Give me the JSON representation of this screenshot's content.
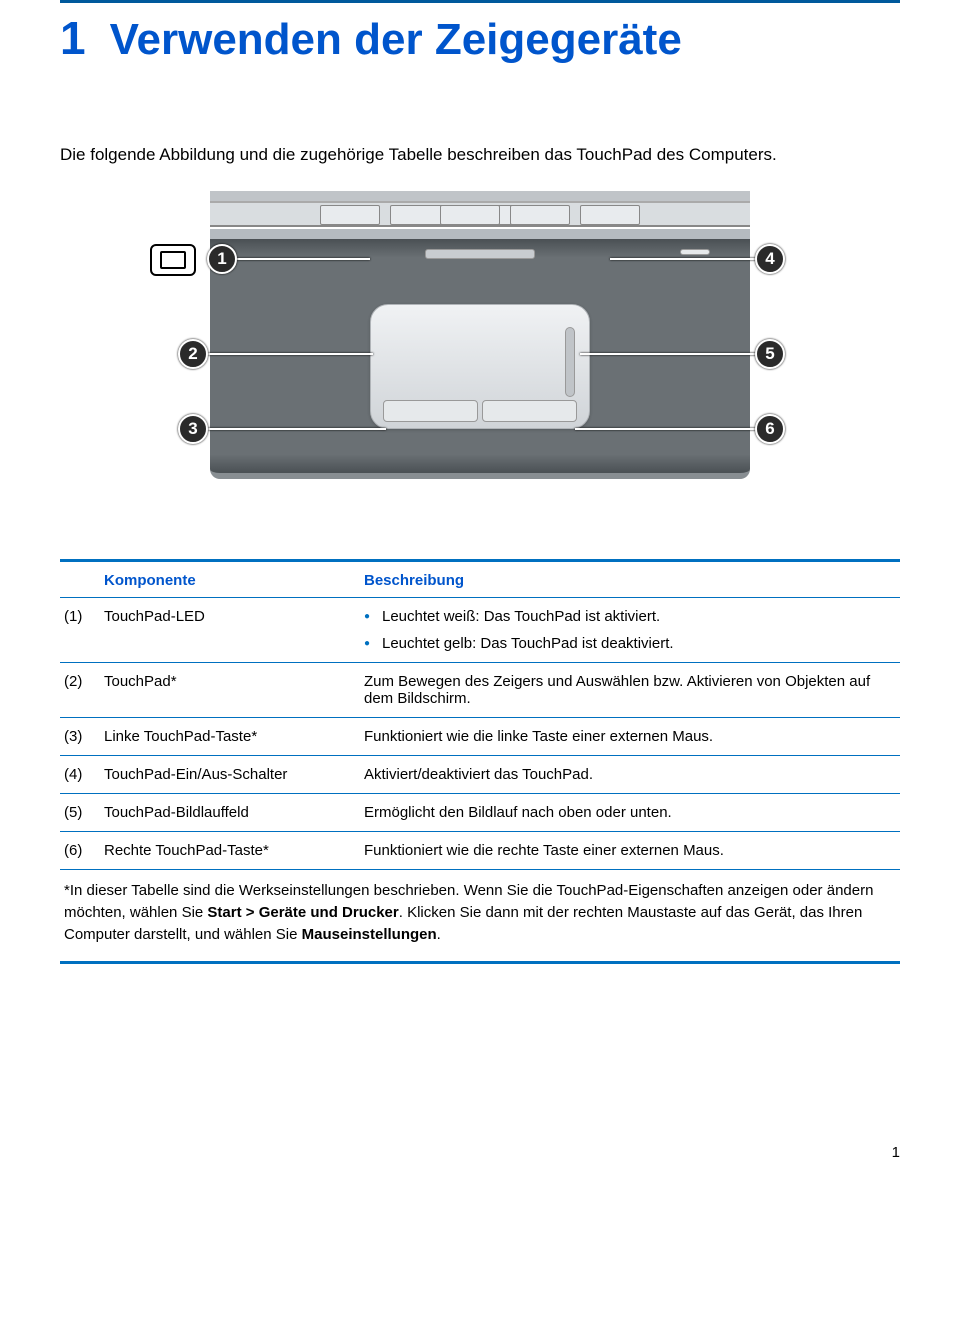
{
  "chapter": {
    "number": "1",
    "title": "Verwenden der Zeigegeräte"
  },
  "intro": "Die folgende Abbildung und die zugehörige Tabelle beschreiben das TouchPad des Computers.",
  "diagram": {
    "callouts": [
      "1",
      "2",
      "3",
      "4",
      "5",
      "6"
    ]
  },
  "table": {
    "headers": {
      "komponente": "Komponente",
      "beschreibung": "Beschreibung"
    },
    "rows": [
      {
        "n": "(1)",
        "k": "TouchPad-LED",
        "bullets": [
          "Leuchtet weiß: Das TouchPad ist aktiviert.",
          "Leuchtet gelb: Das TouchPad ist deaktiviert."
        ]
      },
      {
        "n": "(2)",
        "k": "TouchPad*",
        "b": "Zum Bewegen des Zeigers und Auswählen bzw. Aktivieren von Objekten auf dem Bildschirm."
      },
      {
        "n": "(3)",
        "k": "Linke TouchPad-Taste*",
        "b": "Funktioniert wie die linke Taste einer externen Maus."
      },
      {
        "n": "(4)",
        "k": "TouchPad-Ein/Aus-Schalter",
        "b": "Aktiviert/deaktiviert das TouchPad."
      },
      {
        "n": "(5)",
        "k": "TouchPad-Bildlauffeld",
        "b": "Ermöglicht den Bildlauf nach oben oder unten."
      },
      {
        "n": "(6)",
        "k": "Rechte TouchPad-Taste*",
        "b": "Funktioniert wie die rechte Taste einer externen Maus."
      }
    ],
    "footnote_pre": "*In dieser Tabelle sind die Werkseinstellungen beschrieben. Wenn Sie die TouchPad-Eigenschaften anzeigen oder ändern möchten, wählen Sie ",
    "footnote_bold1": "Start > Geräte und Drucker",
    "footnote_mid": ". Klicken Sie dann mit der rechten Maustaste auf das Gerät, das Ihren Computer darstellt, und wählen Sie ",
    "footnote_bold2": "Mauseinstellungen",
    "footnote_post": "."
  },
  "page_number": "1",
  "colors": {
    "accent": "#0070c0",
    "heading": "#0055cc"
  }
}
